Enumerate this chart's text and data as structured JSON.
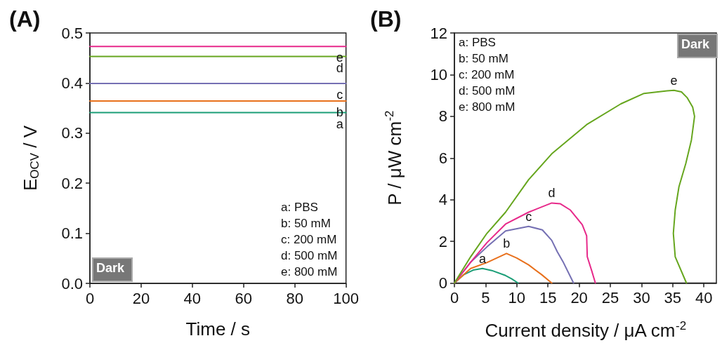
{
  "chart_data": [
    {
      "type": "line",
      "title": "(A)",
      "xlabel": "Time / s",
      "ylabel": "E$_{OCV}$ / V",
      "xlim": [
        0,
        100
      ],
      "xticks": [
        0,
        20,
        40,
        60,
        80,
        100
      ],
      "ylim": [
        0,
        0.5
      ],
      "yticks": [
        {
          "value": 0,
          "label": "0.0"
        },
        0.1,
        0.2,
        0.3,
        0.4,
        0.5
      ],
      "grid": false,
      "legend": false,
      "marker": "none",
      "line_style": "solid",
      "annotations": [
        "a: PBS",
        "b: 50 mM",
        "c: 200 mM",
        "d: 500 mM",
        "e: 800 mM",
        "Dark"
      ],
      "series": [
        {
          "name": "a",
          "color": "#1b9e77",
          "x": [
            0,
            100
          ],
          "values": [
            0.341,
            0.341
          ]
        },
        {
          "name": "b",
          "color": "#e8701c",
          "x": [
            0,
            100
          ],
          "values": [
            0.364,
            0.364
          ]
        },
        {
          "name": "c",
          "color": "#7570b3",
          "x": [
            0,
            100
          ],
          "values": [
            0.399,
            0.399
          ]
        },
        {
          "name": "d",
          "color": "#66a61e",
          "x": [
            0,
            100
          ],
          "values": [
            0.453,
            0.453
          ]
        },
        {
          "name": "e",
          "color": "#e7298a",
          "x": [
            0,
            100
          ],
          "values": [
            0.473,
            0.473
          ]
        }
      ]
    },
    {
      "type": "line",
      "title": "(B)",
      "xlabel": "Current density / μA cm$^{-2}$",
      "ylabel": "P / μW cm$^{-2}$",
      "xlim": [
        0,
        42
      ],
      "xticks": [
        0,
        5,
        10,
        15,
        20,
        25,
        30,
        35,
        40
      ],
      "ylim": [
        0,
        12
      ],
      "yticks": [
        0,
        2,
        4,
        6,
        8,
        10,
        12
      ],
      "grid": false,
      "legend": false,
      "marker": "none",
      "line_style": "solid",
      "annotations": [
        "a: PBS",
        "b: 50 mM",
        "c: 200 mM",
        "d: 500 mM",
        "e: 800 mM",
        "Dark"
      ],
      "series": [
        {
          "name": "a",
          "color": "#1b9e77",
          "x": [
            0,
            1.5,
            3,
            4.5,
            6,
            8.2,
            9.2,
            10.2
          ],
          "values": [
            0,
            0.4,
            0.62,
            0.7,
            0.6,
            0.36,
            0.2,
            0
          ]
        },
        {
          "name": "b",
          "color": "#e8701c",
          "x": [
            0,
            2.6,
            5.2,
            8.35,
            10,
            11.9,
            14,
            15.6
          ],
          "values": [
            0,
            0.7,
            0.98,
            1.42,
            1.2,
            0.87,
            0.4,
            0
          ]
        },
        {
          "name": "c",
          "color": "#7570b3",
          "x": [
            0,
            2.6,
            5.2,
            8.2,
            11.9,
            14.1,
            15.6,
            16.5,
            17.4,
            19.1
          ],
          "values": [
            0,
            1.0,
            1.73,
            2.5,
            2.72,
            2.55,
            2.05,
            1.5,
            1.03,
            0
          ]
        },
        {
          "name": "d",
          "color": "#e7298a",
          "x": [
            0,
            2.6,
            5.2,
            8.2,
            11.9,
            15.6,
            17,
            18.6,
            20.5,
            21.2,
            21.3,
            22,
            22.6
          ],
          "values": [
            0,
            1.0,
            1.93,
            2.83,
            3.4,
            3.84,
            3.8,
            3.5,
            2.8,
            2.27,
            1.26,
            0.6,
            0
          ]
        },
        {
          "name": "e",
          "color": "#66a61e",
          "x": [
            0,
            2.6,
            5.2,
            8.2,
            11.9,
            15.6,
            21.2,
            26.7,
            30.4,
            34.1,
            35.2,
            36.4,
            37.3,
            38.2,
            38.5,
            38,
            37.1,
            36,
            35.4,
            35.1,
            35.4,
            37.2
          ],
          "values": [
            0,
            1.26,
            2.38,
            3.4,
            4.96,
            6.2,
            7.6,
            8.6,
            9.1,
            9.22,
            9.25,
            9.17,
            8.9,
            8.44,
            8.0,
            6.87,
            5.74,
            4.62,
            3.5,
            2.38,
            1.26,
            0
          ]
        }
      ]
    }
  ]
}
